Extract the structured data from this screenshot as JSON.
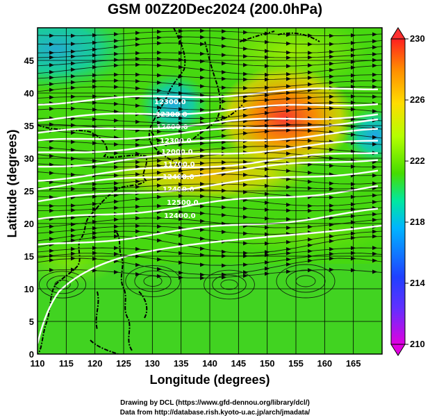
{
  "title": "GSM 00Z20Dec2024 (200.0hPa)",
  "xlabel": "Longitude (degrees)",
  "ylabel": "Latitude  (degrees)",
  "credits": [
    "Drawing by DCL (https://www.gfd-dennou.org/library/dcl/)",
    "Data from http://database.rish.kyoto-u.ac.jp/arch/jmadata/"
  ],
  "map": {
    "region": "East Asia / Western North Pacific",
    "lon_range": [
      110,
      170
    ],
    "lat_range": [
      0,
      50
    ],
    "x_ticks": [
      110,
      115,
      120,
      125,
      130,
      135,
      140,
      145,
      150,
      155,
      160,
      165
    ],
    "y_ticks": [
      0,
      5,
      10,
      15,
      20,
      25,
      30,
      35,
      40,
      45
    ],
    "grid": true,
    "overlay": "streamlines",
    "contour_color": "#ffffff",
    "contour_labels": [
      "12300.0",
      "12300.0",
      "12600.0",
      "12300.0",
      "12000.0",
      "11700.0",
      "12400.0",
      "12400.0",
      "12500.0",
      "12400.0"
    ]
  },
  "colorbar": {
    "ticks": [
      210,
      214,
      218,
      222,
      226,
      230
    ],
    "min": 210,
    "max": 230,
    "colors": [
      "#e000e0",
      "#3c3cff",
      "#00b4ff",
      "#00e8a0",
      "#46dc00",
      "#b4ff00",
      "#ffdc00",
      "#ff8c00",
      "#ff2020"
    ]
  }
}
